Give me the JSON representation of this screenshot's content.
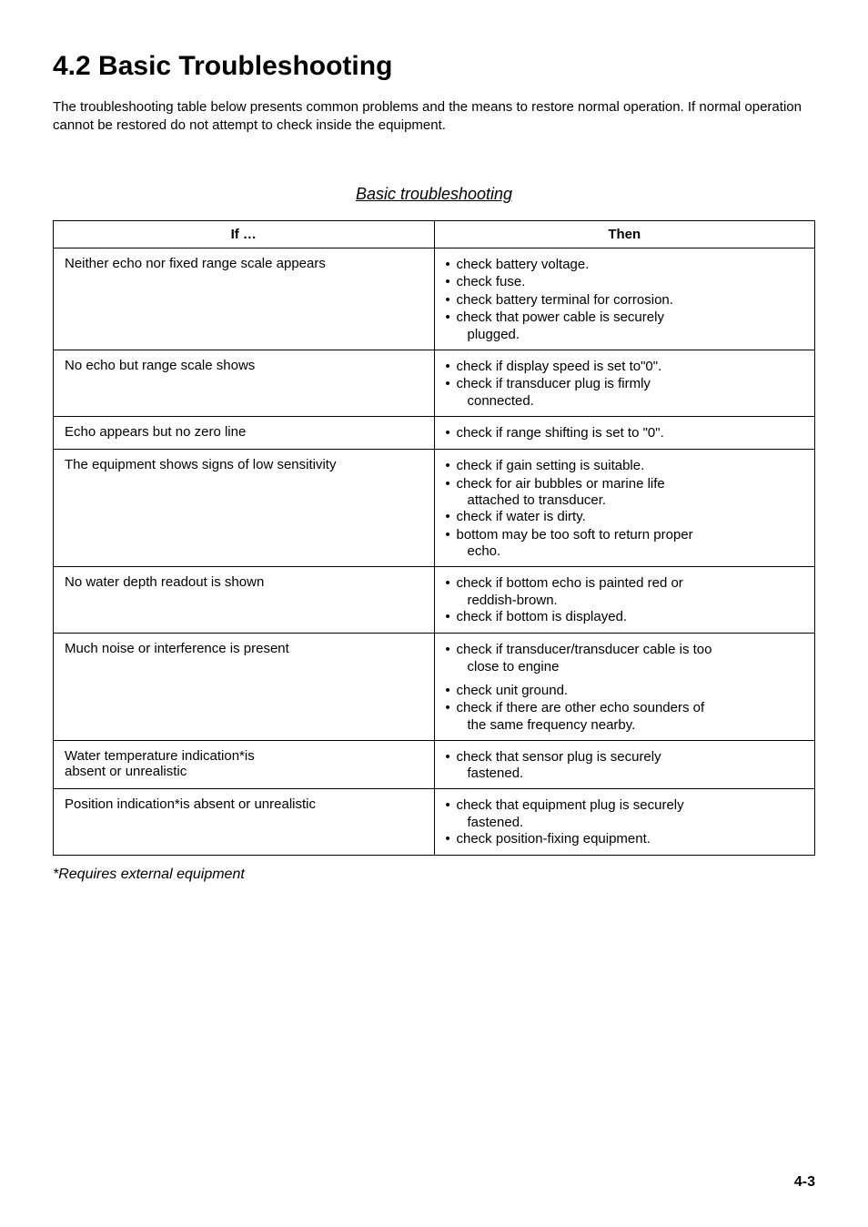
{
  "heading": "4.2  Basic Troubleshooting",
  "intro": "The troubleshooting table below presents common problems and the means to restore normal operation. If normal operation cannot be restored do not attempt to check inside the equipment.",
  "caption": "Basic troubleshooting",
  "table": {
    "headers": {
      "left": "If …",
      "right": "Then"
    },
    "rows": [
      {
        "if": "Neither echo nor fixed range scale appears",
        "then": [
          "check battery voltage.",
          "check fuse.",
          "check battery terminal for corrosion.",
          "check that power cable is securely",
          {
            "indent": "plugged."
          }
        ]
      },
      {
        "if": "No echo but range scale shows",
        "then": [
          "check if display speed is set to\"0\".",
          "check if transducer plug is firmly",
          {
            "indent": "connected."
          }
        ]
      },
      {
        "if": "Echo appears but no zero line",
        "then": [
          "check if range shifting is set to \"0\"."
        ]
      },
      {
        "if": "The equipment shows signs of low sensitivity",
        "then": [
          "check if gain setting is suitable.",
          "check for air bubbles or marine life",
          {
            "indent": "attached to transducer."
          },
          "check if water is dirty.",
          "bottom may be too soft to return proper",
          {
            "indent": "echo."
          }
        ]
      },
      {
        "if": "No water depth readout is shown",
        "then": [
          "check if bottom echo is painted red or",
          {
            "indent": "reddish-brown."
          },
          "check if bottom is displayed."
        ]
      },
      {
        "if": "Much noise or interference is present",
        "then_blocks": [
          [
            "check if transducer/transducer cable is too",
            {
              "indent": "close to engine"
            }
          ],
          [
            "check unit ground.",
            "check if there are other echo sounders of",
            {
              "indent": "the same frequency nearby."
            }
          ]
        ]
      },
      {
        "if": "Water temperature indication*is\nabsent or unrealistic",
        "then": [
          "check that sensor plug is securely",
          {
            "indent": "fastened."
          }
        ]
      },
      {
        "if": "Position indication*is absent or unrealistic",
        "then": [
          "check that equipment plug is securely",
          {
            "indent": "fastened."
          },
          "check position-fixing equipment."
        ]
      }
    ]
  },
  "footnote": "*Requires external equipment",
  "page_number": "4-3"
}
